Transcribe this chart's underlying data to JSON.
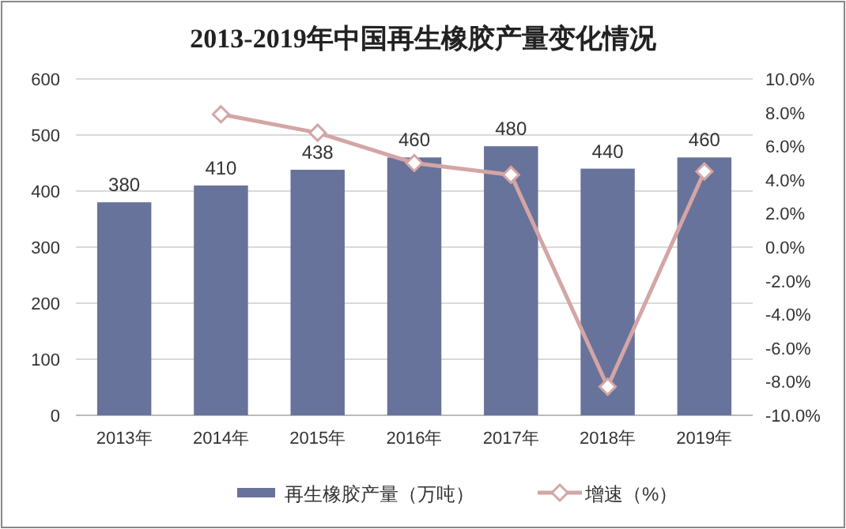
{
  "chart_data": {
    "type": "bar",
    "title": "2013-2019年中国再生橡胶产量变化情况",
    "categories": [
      "2013年",
      "2014年",
      "2015年",
      "2016年",
      "2017年",
      "2018年",
      "2019年"
    ],
    "series": [
      {
        "name": "再生橡胶产量（万吨）",
        "color": "#68739b",
        "values": [
          380,
          410,
          438,
          460,
          480,
          440,
          460
        ],
        "value_labels": [
          "380",
          "410",
          "438",
          "460",
          "480",
          "440",
          "460"
        ]
      },
      {
        "name": "增速（%）",
        "type": "line",
        "axis": "y2",
        "color": "#d4a5a5",
        "marker": "diamond",
        "values": [
          null,
          7.9,
          6.8,
          5.0,
          4.3,
          -8.3,
          4.5
        ]
      }
    ],
    "ylim": [
      0,
      600
    ],
    "yticks": [
      0,
      100,
      200,
      300,
      400,
      500,
      600
    ],
    "y2lim": [
      -10,
      10
    ],
    "y2ticks": [
      {
        "value": -10,
        "label": "-10.0%"
      },
      {
        "value": -8,
        "label": "-8.0%"
      },
      {
        "value": -6,
        "label": "-6.0%"
      },
      {
        "value": -4,
        "label": "-4.0%"
      },
      {
        "value": -2,
        "label": "-2.0%"
      },
      {
        "value": 0,
        "label": "0.0%"
      },
      {
        "value": 2,
        "label": "2.0%"
      },
      {
        "value": 4,
        "label": "4.0%"
      },
      {
        "value": 6,
        "label": "6.0%"
      },
      {
        "value": 8,
        "label": "8.0%"
      },
      {
        "value": 10,
        "label": "10.0%"
      }
    ],
    "grid": "y",
    "legend": "bottom"
  }
}
